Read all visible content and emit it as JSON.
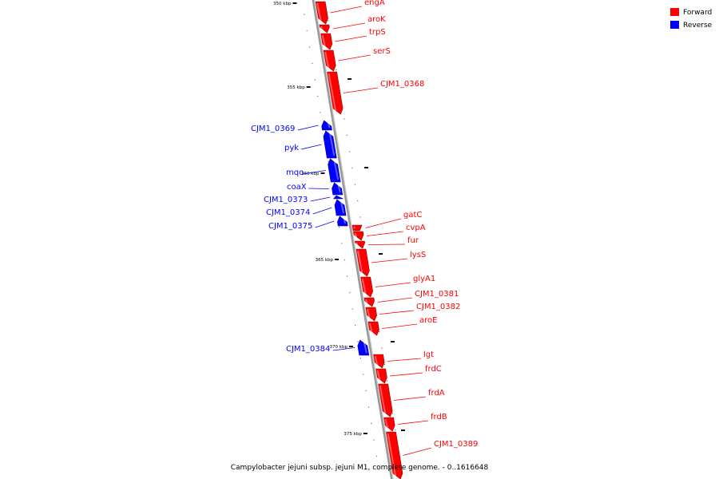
{
  "caption": "Campylobacter jejuni subsp. jejuni M1, complete genome. - 0..1616648",
  "legend": [
    {
      "label": "Forward",
      "color": "#ff0000"
    },
    {
      "label": "Reverse",
      "color": "#0000ff"
    }
  ],
  "colors": {
    "forward": "#ff0000",
    "reverse": "#0000ff",
    "backbone": "#999999"
  },
  "ticks": [
    {
      "label": "350 kbp"
    },
    {
      "label": "355 kbp"
    },
    {
      "label": "360 kbp"
    },
    {
      "label": "365 kbp"
    },
    {
      "label": "370 kbp"
    },
    {
      "label": "375 kbp"
    }
  ],
  "genes": [
    {
      "name": "engA",
      "strand": "forward"
    },
    {
      "name": "aroK",
      "strand": "forward"
    },
    {
      "name": "trpS",
      "strand": "forward"
    },
    {
      "name": "serS",
      "strand": "forward"
    },
    {
      "name": "CJM1_0368",
      "strand": "forward"
    },
    {
      "name": "CJM1_0369",
      "strand": "reverse"
    },
    {
      "name": "pyk",
      "strand": "reverse"
    },
    {
      "name": "mqo",
      "strand": "reverse"
    },
    {
      "name": "coaX",
      "strand": "reverse"
    },
    {
      "name": "CJM1_0373",
      "strand": "reverse"
    },
    {
      "name": "CJM1_0374",
      "strand": "reverse"
    },
    {
      "name": "CJM1_0375",
      "strand": "reverse"
    },
    {
      "name": "gatC",
      "strand": "forward"
    },
    {
      "name": "cvpA",
      "strand": "forward"
    },
    {
      "name": "fur",
      "strand": "forward"
    },
    {
      "name": "lysS",
      "strand": "forward"
    },
    {
      "name": "glyA1",
      "strand": "forward"
    },
    {
      "name": "CJM1_0381",
      "strand": "forward"
    },
    {
      "name": "CJM1_0382",
      "strand": "forward"
    },
    {
      "name": "aroE",
      "strand": "forward"
    },
    {
      "name": "CJM1_0384",
      "strand": "reverse"
    },
    {
      "name": "lgt",
      "strand": "forward"
    },
    {
      "name": "frdC",
      "strand": "forward"
    },
    {
      "name": "frdA",
      "strand": "forward"
    },
    {
      "name": "frdB",
      "strand": "forward"
    },
    {
      "name": "CJM1_0389",
      "strand": "forward"
    }
  ]
}
